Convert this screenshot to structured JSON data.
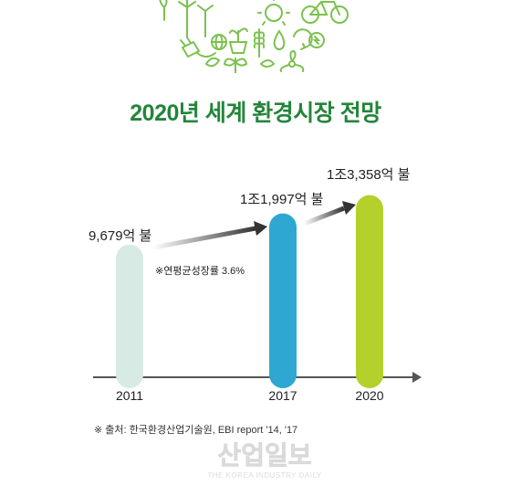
{
  "title": "2020년 세계 환경시장 전망",
  "chart_data": {
    "type": "bar",
    "title": "2020년 세계 환경시장 전망",
    "categories": [
      "2011",
      "2017",
      "2020"
    ],
    "values": [
      9679,
      11997,
      13358
    ],
    "value_unit": "억 불",
    "data_labels": [
      "9,679억 불",
      "1조1,997억 불",
      "1조3,358억 불"
    ],
    "bar_colors": [
      "#d7ebe4",
      "#2ea8d2",
      "#b3d12a"
    ],
    "annotation": "※연평균성장률 3.6%",
    "xlabel": "",
    "ylabel": "",
    "grid": false,
    "legend": "none"
  },
  "source": "※ 출처: 한국환경산업기술원, EBI report '14, '17",
  "watermark": {
    "text": "산업일보",
    "subtext": "THE KOREA INDUSTRY DAILY"
  },
  "colors": {
    "title_green": "#23853a",
    "illustration_green": "#7cc14f",
    "axis": "#555555"
  }
}
